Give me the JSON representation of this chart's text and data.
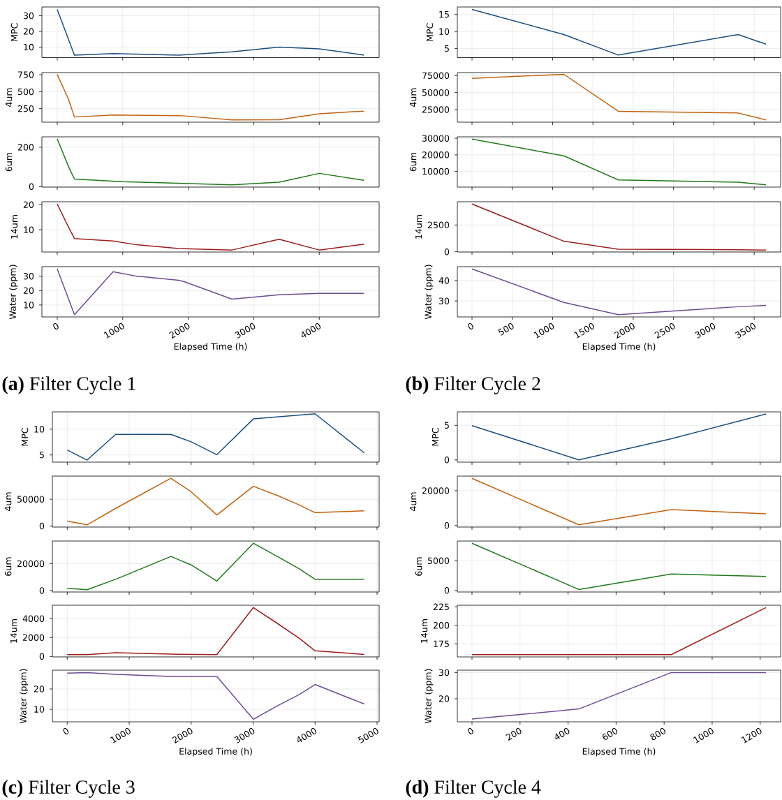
{
  "chart_data": [
    {
      "type": "line",
      "ylabel": "MPC",
      "x": [
        0,
        263,
        853,
        1855,
        2667,
        3387,
        4000,
        4682
      ],
      "values": [
        34,
        4.9,
        5.9,
        4.9,
        7.0,
        10,
        8.9,
        4.9
      ],
      "color": "#1b4f80",
      "xlim": [
        -234,
        4914
      ],
      "xticks": [
        0,
        1000,
        2000,
        3000,
        4000
      ],
      "ylim": [
        3.3,
        35.6
      ],
      "yticks": [
        10,
        20,
        30
      ],
      "grid": true,
      "tick_labels": "y"
    },
    {
      "type": "line",
      "ylabel": "4um",
      "x": [
        0,
        168,
        263,
        853,
        1920,
        2667,
        3387,
        4000,
        4682
      ],
      "values": [
        755,
        398,
        127,
        156,
        145,
        84,
        88,
        174,
        214
      ],
      "color": "#c2620f",
      "xlim": [
        -234,
        4914
      ],
      "xticks": [
        0,
        1000,
        2000,
        3000,
        4000
      ],
      "ylim": [
        51,
        782
      ],
      "yticks": [
        250,
        500,
        750
      ],
      "grid": true,
      "tick_labels": "y"
    },
    {
      "type": "line",
      "ylabel": "6um",
      "x": [
        0,
        179,
        263,
        987,
        2667,
        3387,
        4000,
        4682
      ],
      "values": [
        242,
        97,
        38,
        25,
        9,
        22,
        67,
        32
      ],
      "color": "#1f7a1a",
      "xlim": [
        -234,
        4914
      ],
      "xticks": [
        0,
        1000,
        2000,
        3000,
        4000
      ],
      "ylim": [
        -2.6,
        252.6
      ],
      "yticks": [
        0,
        200
      ],
      "grid": true,
      "tick_labels": "y"
    },
    {
      "type": "line",
      "ylabel": "14um",
      "x": [
        0,
        179,
        263,
        853,
        1208,
        1855,
        2667,
        3387,
        4000,
        4682
      ],
      "values": [
        20.3,
        10.7,
        6.5,
        5.5,
        4.0,
        2.5,
        1.9,
        6.2,
        1.9,
        4.2
      ],
      "color": "#9c1d1d",
      "xlim": [
        -234,
        4914
      ],
      "xticks": [
        0,
        1000,
        2000,
        3000,
        4000
      ],
      "ylim": [
        1.1,
        21.2
      ],
      "yticks": [
        10,
        20
      ],
      "grid": true,
      "tick_labels": "y"
    },
    {
      "type": "line",
      "ylabel": "Water (ppm)",
      "xlabel": "Elapsed Time (h)",
      "annotations": [
        "**(a)** Filter Cycle 1"
      ],
      "x": [
        0,
        263,
        853,
        1208,
        1855,
        1939,
        2667,
        3387,
        4000,
        4682
      ],
      "values": [
        35,
        3.3,
        33.1,
        30,
        27.1,
        26.2,
        14.1,
        17.1,
        18.1,
        18.1
      ],
      "color": "#6c4c93",
      "xlim": [
        -234,
        4914
      ],
      "xticks": [
        0,
        1000,
        2000,
        3000,
        4000
      ],
      "ylim": [
        1.7,
        36.6
      ],
      "yticks": [
        10,
        20,
        30
      ],
      "grid": true
    },
    {
      "type": "line",
      "ylabel": "MPC",
      "x": [
        0,
        1140,
        1815,
        3300,
        3646
      ],
      "values": [
        16.5,
        9.1,
        3.1,
        9.1,
        6.3
      ],
      "color": "#1b4f80",
      "xlim": [
        -182,
        3828
      ],
      "xticks": [
        0,
        500,
        1000,
        1500,
        2000,
        2500,
        3000,
        3500
      ],
      "ylim": [
        2.35,
        17.2
      ],
      "yticks": [
        5,
        10,
        15
      ],
      "grid": true,
      "tick_labels": "y"
    },
    {
      "type": "line",
      "ylabel": "4um",
      "x": [
        0,
        1140,
        1815,
        3300,
        3646
      ],
      "values": [
        71000,
        76800,
        22500,
        20000,
        9800
      ],
      "color": "#c2620f",
      "xlim": [
        -182,
        3828
      ],
      "xticks": [
        0,
        500,
        1000,
        1500,
        2000,
        2500,
        3000,
        3500
      ],
      "ylim": [
        6520,
        79350
      ],
      "yticks": [
        25000,
        50000,
        75000
      ],
      "grid": true,
      "tick_labels": "y"
    },
    {
      "type": "line",
      "ylabel": "6um",
      "x": [
        0,
        1140,
        1815,
        3300,
        3646
      ],
      "values": [
        29500,
        19400,
        4850,
        3500,
        1900
      ],
      "color": "#1f7a1a",
      "xlim": [
        -182,
        3828
      ],
      "xticks": [
        0,
        500,
        1000,
        1500,
        2000,
        2500,
        3000,
        3500
      ],
      "ylim": [
        527,
        30900
      ],
      "yticks": [
        10000,
        20000,
        30000
      ],
      "grid": true,
      "tick_labels": "y"
    },
    {
      "type": "line",
      "ylabel": "14um",
      "x": [
        0,
        1140,
        1815,
        3300,
        3646
      ],
      "values": [
        4463,
        981,
        234,
        187,
        164
      ],
      "color": "#9c1d1d",
      "xlim": [
        -182,
        3828
      ],
      "xticks": [
        0,
        500,
        1000,
        1500,
        2000,
        2500,
        3000,
        3500
      ],
      "ylim": [
        -23,
        4673
      ],
      "yticks": [
        0,
        2500
      ],
      "grid": true,
      "tick_labels": "y"
    },
    {
      "type": "line",
      "ylabel": "Water (ppm)",
      "xlabel": "Elapsed Time (h)",
      "annotations": [
        "**(b)** Filter Cycle 2"
      ],
      "x": [
        0,
        1140,
        1815,
        3300,
        3646
      ],
      "values": [
        45.7,
        29.3,
        23.3,
        27.2,
        27.8
      ],
      "color": "#6c4c93",
      "xlim": [
        -182,
        3828
      ],
      "xticks": [
        0,
        500,
        1000,
        1500,
        2000,
        2500,
        3000,
        3500
      ],
      "ylim": [
        22.2,
        46.8
      ],
      "yticks": [
        30,
        40
      ],
      "grid": true
    },
    {
      "type": "line",
      "ylabel": "MPC",
      "x": [
        0,
        320,
        782,
        1673,
        2000,
        2415,
        3004,
        4000,
        4794
      ],
      "values": [
        5.96,
        4.0,
        9.0,
        9.0,
        7.55,
        5.05,
        12.0,
        13.0,
        5.4
      ],
      "color": "#1b4f80",
      "xlim": [
        -240,
        5034
      ],
      "xticks": [
        0,
        1000,
        2000,
        3000,
        4000,
        5000
      ],
      "ylim": [
        3.6,
        13.37
      ],
      "yticks": [
        5,
        10
      ],
      "grid": true,
      "tick_labels": "y"
    },
    {
      "type": "line",
      "ylabel": "4um",
      "x": [
        0,
        320,
        802,
        1673,
        2000,
        2415,
        3004,
        3391,
        3746,
        4000,
        4794
      ],
      "values": [
        9260,
        2300,
        34260,
        88900,
        63900,
        20800,
        74100,
        57000,
        39350,
        25000,
        28240
      ],
      "color": "#c2620f",
      "xlim": [
        -240,
        5034
      ],
      "xticks": [
        0,
        1000,
        2000,
        3000,
        4000,
        5000
      ],
      "ylim": [
        -1850,
        93060
      ],
      "yticks": [
        0,
        50000
      ],
      "grid": true,
      "tick_labels": "y"
    },
    {
      "type": "line",
      "ylabel": "6um",
      "x": [
        0,
        320,
        802,
        1673,
        2000,
        2415,
        3004,
        3391,
        3746,
        4000,
        4794
      ],
      "values": [
        1670,
        560,
        8700,
        25370,
        19070,
        7040,
        35190,
        25370,
        16110,
        8330,
        8330
      ],
      "color": "#1f7a1a",
      "xlim": [
        -240,
        5034
      ],
      "xticks": [
        0,
        1000,
        2000,
        3000,
        4000,
        5000
      ],
      "ylim": [
        -1111,
        36850
      ],
      "yticks": [
        0,
        20000
      ],
      "grid": true,
      "tick_labels": "y"
    },
    {
      "type": "line",
      "ylabel": "14um",
      "x": [
        0,
        320,
        782,
        1673,
        2415,
        3004,
        3391,
        3746,
        4000,
        4794
      ],
      "values": [
        187,
        187,
        400,
        240,
        187,
        5173,
        3493,
        1920,
        587,
        213
      ],
      "color": "#9c1d1d",
      "xlim": [
        -240,
        5034
      ],
      "xticks": [
        0,
        1000,
        2000,
        3000,
        4000,
        5000
      ],
      "ylim": [
        -53,
        5413
      ],
      "yticks": [
        0,
        2000,
        4000
      ],
      "grid": true,
      "tick_labels": "y"
    },
    {
      "type": "line",
      "ylabel": "Water (ppm)",
      "xlabel": "Elapsed Time (h)",
      "annotations": [
        "**(c)** Filter Cycle 3"
      ],
      "x": [
        0,
        320,
        782,
        1673,
        2415,
        3004,
        3391,
        3746,
        4000,
        4794
      ],
      "values": [
        27.8,
        28.1,
        27.2,
        26.2,
        26.2,
        5.1,
        11.7,
        17.3,
        22.2,
        12.6
      ],
      "color": "#6c4c93",
      "xlim": [
        -240,
        5034
      ],
      "xticks": [
        0,
        1000,
        2000,
        3000,
        4000,
        5000
      ],
      "ylim": [
        3.83,
        29.26
      ],
      "yticks": [
        10,
        20
      ],
      "grid": true
    },
    {
      "type": "line",
      "ylabel": "MPC",
      "x": [
        0,
        445,
        830,
        1224
      ],
      "values": [
        4.96,
        0.0,
        3.05,
        6.65
      ],
      "color": "#1b4f80",
      "xlim": [
        -61,
        1285
      ],
      "xticks": [
        0,
        200,
        400,
        600,
        800,
        1000,
        1200
      ],
      "ylim": [
        -0.33,
        6.95
      ],
      "yticks": [
        0,
        5
      ],
      "grid": true,
      "tick_labels": "y"
    },
    {
      "type": "line",
      "ylabel": "4um",
      "x": [
        0,
        445,
        830,
        1224
      ],
      "values": [
        27060,
        440,
        9120,
        6760
      ],
      "color": "#c2620f",
      "xlim": [
        -61,
        1285
      ],
      "xticks": [
        0,
        200,
        400,
        600,
        800,
        1000,
        1200
      ],
      "ylim": [
        -880,
        28380
      ],
      "yticks": [
        0,
        20000
      ],
      "grid": true,
      "tick_labels": "y"
    },
    {
      "type": "line",
      "ylabel": "6um",
      "x": [
        0,
        445,
        830,
        1224
      ],
      "values": [
        7950,
        170,
        2780,
        2350
      ],
      "color": "#1f7a1a",
      "xlim": [
        -61,
        1285
      ],
      "xticks": [
        0,
        200,
        400,
        600,
        800,
        1000,
        1200
      ],
      "ylim": [
        -256,
        8330
      ],
      "yticks": [
        0,
        5000
      ],
      "grid": true,
      "tick_labels": "y"
    },
    {
      "type": "line",
      "ylabel": "14um",
      "x": [
        0,
        830,
        1224
      ],
      "values": [
        160.5,
        160.5,
        224
      ],
      "color": "#9c1d1d",
      "xlim": [
        -61,
        1285
      ],
      "xticks": [
        0,
        200,
        400,
        600,
        800,
        1000,
        1200
      ],
      "ylim": [
        157.4,
        227.2
      ],
      "yticks": [
        175,
        200,
        225
      ],
      "grid": true,
      "tick_labels": "y"
    },
    {
      "type": "line",
      "ylabel": "Water (ppm)",
      "xlabel": "Elapsed Time (h)",
      "annotations": [
        "**(d)** Filter Cycle 4"
      ],
      "x": [
        0,
        445,
        830,
        1224
      ],
      "values": [
        12.25,
        16.1,
        30,
        30
      ],
      "color": "#6c4c93",
      "xlim": [
        -61,
        1285
      ],
      "xticks": [
        0,
        200,
        400,
        600,
        800,
        1000,
        1200
      ],
      "ylim": [
        11.2,
        30.9
      ],
      "yticks": [
        20,
        30
      ],
      "grid": true
    }
  ]
}
